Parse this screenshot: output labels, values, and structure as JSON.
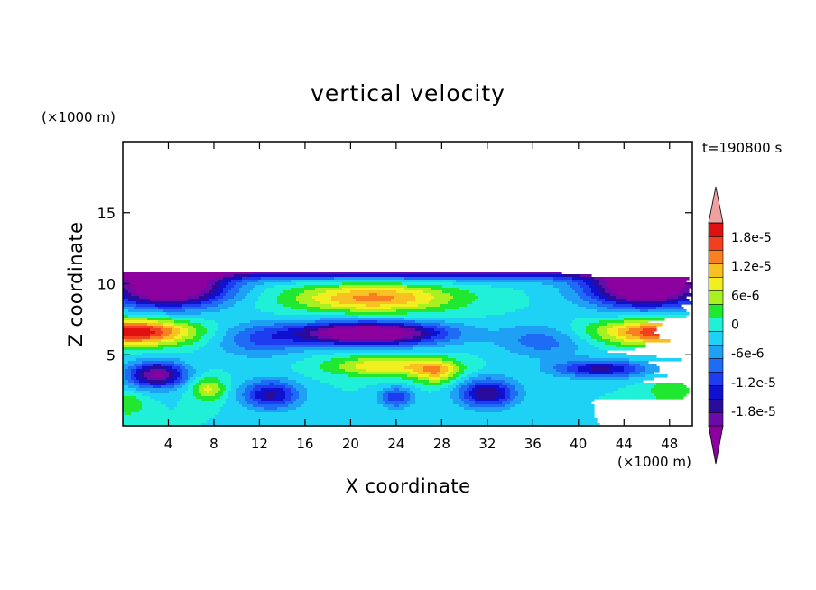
{
  "chart_data": {
    "type": "heatmap",
    "title": "vertical velocity",
    "xlabel": "X coordinate",
    "ylabel": "Z coordinate",
    "x_unit": "(×1000 m)",
    "y_unit": "(×1000 m)",
    "time_label": "t=190800 s",
    "xlim": [
      0,
      50
    ],
    "ylim": [
      0,
      20
    ],
    "xticks": [
      4,
      8,
      12,
      16,
      20,
      24,
      28,
      32,
      36,
      40,
      44,
      48
    ],
    "yticks": [
      5,
      10,
      15
    ],
    "colorbar": {
      "levels": [
        -2.1e-05,
        -1.8e-05,
        -1.5e-05,
        -1.2e-05,
        -9e-06,
        -6e-06,
        -3e-06,
        0,
        3e-06,
        6e-06,
        9e-06,
        1.2e-05,
        1.5e-05,
        1.8e-05,
        2.1e-05
      ],
      "colors": [
        "#6a0aa8",
        "#2a0c9c",
        "#1010d0",
        "#1e3cf0",
        "#1e6cf5",
        "#1ea0f5",
        "#1ed2f5",
        "#20f0d8",
        "#20e830",
        "#a8f020",
        "#f0f020",
        "#f8c020",
        "#f88020",
        "#f04020",
        "#e01010"
      ],
      "under_color": "#8c00a0",
      "over_color": "#f0a0a0",
      "tick_labels": [
        "-1.8e-5",
        "-1.2e-5",
        "-6e-6",
        "0",
        "6e-6",
        "1.2e-5",
        "1.8e-5"
      ],
      "tick_values": [
        -1.8e-05,
        -1.2e-05,
        -6e-06,
        0,
        6e-06,
        1.2e-05,
        1.8e-05
      ]
    },
    "field": {
      "background": -3e-05,
      "base": 0,
      "features": [
        {
          "x": 25,
          "z": 11.6,
          "sx": 40,
          "sz": 0.9,
          "v": -5e-05
        },
        {
          "x": 2,
          "z": 11.3,
          "sx": 4,
          "sz": 0.6,
          "v": -1.5e-05
        },
        {
          "x": 46,
          "z": 11.8,
          "sx": 5,
          "sz": 0.6,
          "v": -1.5e-05
        },
        {
          "x": 22,
          "z": 9.0,
          "sx": 7,
          "sz": 1.0,
          "v": 1.6e-05
        },
        {
          "x": 4,
          "z": 9.8,
          "sx": 5,
          "sz": 1.4,
          "v": -3.2e-05
        },
        {
          "x": 46,
          "z": 9.8,
          "sx": 5,
          "sz": 1.4,
          "v": -3.2e-05
        },
        {
          "x": 1,
          "z": 6.6,
          "sx": 5,
          "sz": 0.9,
          "v": 2.4e-05
        },
        {
          "x": 49,
          "z": 6.6,
          "sx": 7,
          "sz": 0.9,
          "v": 2.4e-05
        },
        {
          "x": 21.5,
          "z": 6.5,
          "sx": 6.5,
          "sz": 0.8,
          "v": -3e-05
        },
        {
          "x": 12,
          "z": 6.0,
          "sx": 4,
          "sz": 1.2,
          "v": -8e-06
        },
        {
          "x": 37,
          "z": 6.0,
          "sx": 4,
          "sz": 1.2,
          "v": -8e-06
        },
        {
          "x": 23,
          "z": 4.2,
          "sx": 5,
          "sz": 0.7,
          "v": 1.2e-05
        },
        {
          "x": 27.5,
          "z": 3.8,
          "sx": 2,
          "sz": 0.8,
          "v": 1.2e-05
        },
        {
          "x": 3,
          "z": 3.6,
          "sx": 2.5,
          "sz": 0.9,
          "v": -2.2e-05
        },
        {
          "x": 7.5,
          "z": 2.6,
          "sx": 1.5,
          "sz": 0.8,
          "v": 1e-05
        },
        {
          "x": 13,
          "z": 2.2,
          "sx": 2.5,
          "sz": 1.0,
          "v": -1.6e-05
        },
        {
          "x": 32,
          "z": 2.3,
          "sx": 2.5,
          "sz": 1.0,
          "v": -1.8e-05
        },
        {
          "x": 42,
          "z": 4.0,
          "sx": 4,
          "sz": 0.6,
          "v": -1.6e-05
        },
        {
          "x": 48,
          "z": 2.5,
          "sx": 2,
          "sz": 0.8,
          "v": 6e-06
        },
        {
          "x": 0.5,
          "z": 1.5,
          "sx": 1.5,
          "sz": 0.8,
          "v": 6e-06
        },
        {
          "x": 24,
          "z": 2.0,
          "sx": 1.5,
          "sz": 0.7,
          "v": -1.2e-05
        }
      ]
    }
  }
}
